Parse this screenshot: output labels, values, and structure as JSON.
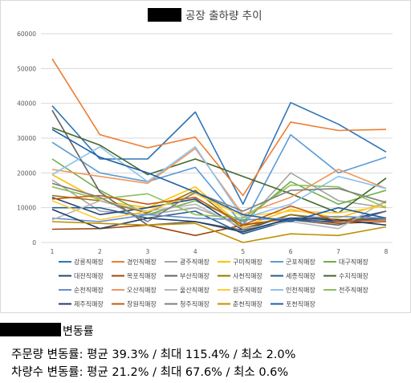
{
  "chart_data": {
    "type": "line",
    "title": "공장 출하량 추이",
    "x": [
      1,
      2,
      3,
      4,
      5,
      6,
      7,
      8
    ],
    "ylim": [
      0,
      60000
    ],
    "yticks": [
      "0",
      "10000",
      "20000",
      "30000",
      "40000",
      "50000",
      "60000"
    ],
    "xticks": [
      "1",
      "2",
      "3",
      "4",
      "5",
      "6",
      "7",
      "8"
    ],
    "grid": "horizontal",
    "legend": "bottom",
    "series": [
      {
        "name": "강릉직매장",
        "color": "#2e75b6",
        "values": [
          39300,
          24000,
          24000,
          37500,
          11000,
          40200,
          34000,
          26000
        ]
      },
      {
        "name": "경인직매장",
        "color": "#ed7d31",
        "values": [
          52800,
          31000,
          27200,
          30300,
          13500,
          34600,
          32200,
          32500
        ]
      },
      {
        "name": "광주직매장",
        "color": "#a5a5a5",
        "values": [
          18000,
          9000,
          8000,
          10000,
          5000,
          20000,
          12000,
          10000
        ]
      },
      {
        "name": "구미직매장",
        "color": "#ffc000",
        "values": [
          19500,
          12000,
          10000,
          16000,
          4500,
          9500,
          7000,
          11500
        ]
      },
      {
        "name": "군포직매장",
        "color": "#5b9bd5",
        "values": [
          28800,
          20000,
          17500,
          21600,
          5000,
          31000,
          20000,
          24500
        ]
      },
      {
        "name": "대구직매장",
        "color": "#70ad47",
        "values": [
          24000,
          15000,
          8000,
          12000,
          6000,
          17500,
          11000,
          15000
        ]
      },
      {
        "name": "대전직매장",
        "color": "#264478",
        "values": [
          13000,
          8000,
          10000,
          12500,
          3500,
          8000,
          6000,
          9000
        ]
      },
      {
        "name": "목포직매장",
        "color": "#9e480e",
        "values": [
          3800,
          4000,
          5000,
          2000,
          5000,
          7000,
          5500,
          6000
        ]
      },
      {
        "name": "부산직매장",
        "color": "#636363",
        "values": [
          38000,
          14500,
          5000,
          6000,
          3500,
          6500,
          5000,
          9000
        ]
      },
      {
        "name": "사천직매장",
        "color": "#997300",
        "values": [
          13500,
          12000,
          8500,
          15000,
          4000,
          8000,
          6500,
          7000
        ]
      },
      {
        "name": "세종직매장",
        "color": "#255e91",
        "values": [
          10000,
          10000,
          7000,
          9000,
          2500,
          6500,
          6000,
          7000
        ]
      },
      {
        "name": "수지직매장",
        "color": "#43682b",
        "values": [
          33000,
          28000,
          19500,
          24000,
          19000,
          14000,
          8500,
          18500
        ]
      },
      {
        "name": "순천직매장",
        "color": "#698ed0",
        "values": [
          7000,
          6000,
          8000,
          7000,
          6500,
          7000,
          7500,
          7000
        ]
      },
      {
        "name": "오산직매장",
        "color": "#f1975a",
        "values": [
          21000,
          19000,
          17000,
          27000,
          8000,
          13000,
          21000,
          15500
        ]
      },
      {
        "name": "울산직매장",
        "color": "#b7b7b7",
        "values": [
          6500,
          12000,
          9000,
          11000,
          4000,
          6000,
          4000,
          12000
        ]
      },
      {
        "name": "원주직매장",
        "color": "#ffcd33",
        "values": [
          12000,
          6500,
          9000,
          14000,
          7500,
          9000,
          8500,
          10500
        ]
      },
      {
        "name": "인천직매장",
        "color": "#8cc3ec",
        "values": [
          19500,
          27500,
          17500,
          27500,
          7000,
          11000,
          19000,
          15500
        ]
      },
      {
        "name": "전주직매장",
        "color": "#8fbf5a",
        "values": [
          16000,
          12500,
          14000,
          8000,
          7000,
          16500,
          16000,
          10000
        ]
      },
      {
        "name": "제주직매장",
        "color": "#1f3d6b",
        "values": [
          9500,
          4000,
          7000,
          6000,
          3000,
          7000,
          6500,
          5000
        ]
      },
      {
        "name": "창원직매장",
        "color": "#c55a11",
        "values": [
          12500,
          13500,
          11000,
          13000,
          5000,
          10500,
          6000,
          6500
        ]
      },
      {
        "name": "청주직매장",
        "color": "#7f7f7f",
        "values": [
          17000,
          13000,
          6000,
          14500,
          9000,
          15000,
          15500,
          11500
        ]
      },
      {
        "name": "춘천직매장",
        "color": "#bf9000",
        "values": [
          6000,
          5500,
          5000,
          5500,
          0,
          2500,
          2000,
          4500
        ]
      },
      {
        "name": "포천직매장",
        "color": "#1f5fa6",
        "values": [
          32500,
          24500,
          20000,
          14500,
          8000,
          6000,
          10000,
          7000
        ]
      }
    ]
  },
  "summary": {
    "title": "변동률",
    "line1": "주문량 변동률: 평균 39.3% / 최대 115.4% / 최소 2.0%",
    "line2": "차량수 변동률: 평균 21.2% / 최대 67.6% / 최소 0.6%"
  }
}
